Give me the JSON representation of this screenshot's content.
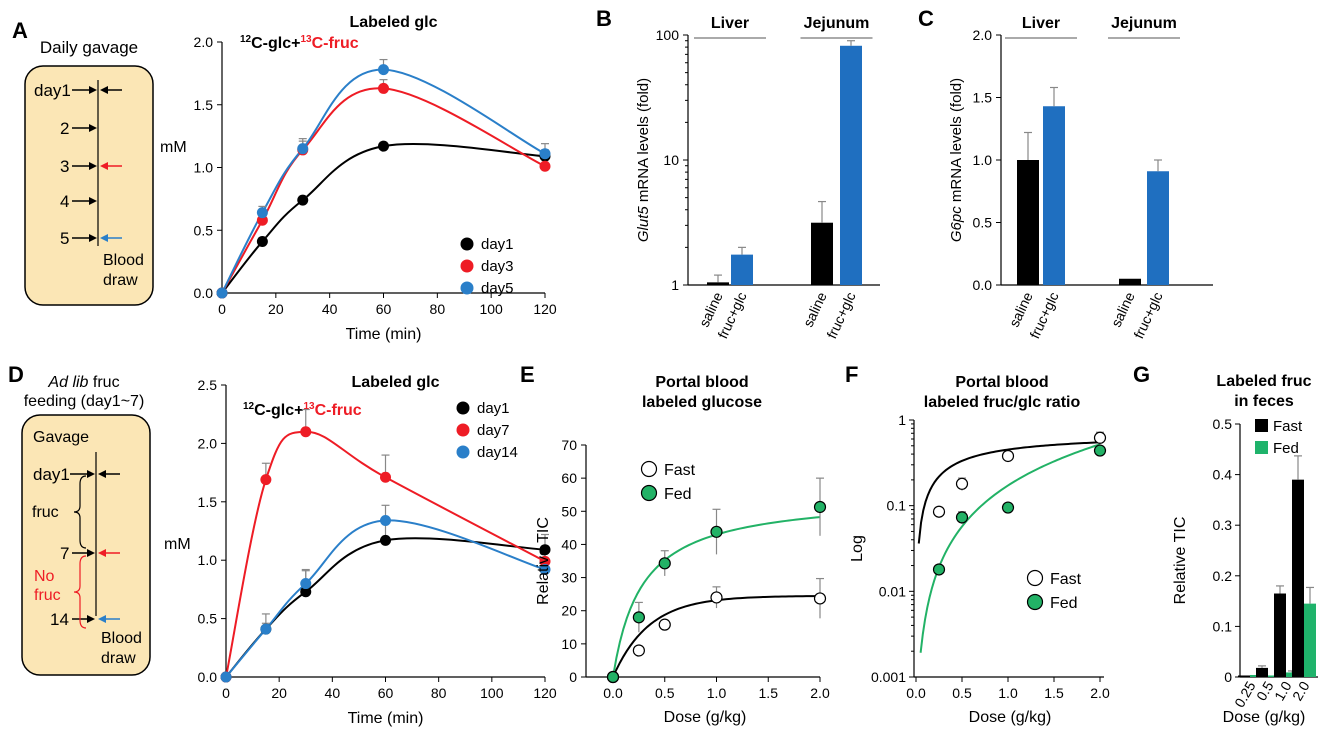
{
  "panels": {
    "A": {
      "letter": "A",
      "schematic": {
        "title": "Daily gavage",
        "days": [
          "day1",
          "2",
          "3",
          "4",
          "5"
        ],
        "blood_draw": [
          "Blood",
          "draw"
        ]
      }
    },
    "B": {
      "letter": "B"
    },
    "C": {
      "letter": "C"
    },
    "D": {
      "letter": "D",
      "schematic": {
        "title_italic": "Ad lib",
        "title_rest": " fruc",
        "title_line2": "feeding (day1~7)",
        "box_title": "Gavage",
        "days": [
          "day1",
          "7",
          "14"
        ],
        "fruc_label": "fruc",
        "no_fruc_label": [
          "No",
          "fruc"
        ],
        "blood_draw": [
          "Blood",
          "draw"
        ]
      }
    },
    "E": {
      "letter": "E"
    },
    "F": {
      "letter": "F"
    },
    "G": {
      "letter": "G"
    }
  },
  "colors": {
    "black": "#000000",
    "red": "#ee1c25",
    "blue": "#2a7fc9",
    "bar_blue": "#1f6fc0",
    "green": "#22b266",
    "bar_green": "#1fb36b",
    "schematic_fill": "#fbe6b5"
  },
  "chart_data": [
    {
      "id": "A",
      "type": "line",
      "title": "Labeled glc",
      "annotation": {
        "part1": "12C-glc+",
        "part2": "13C-fruc"
      },
      "xlabel": "Time (min)",
      "ylabel": "mM",
      "xlim": [
        0,
        120
      ],
      "ylim": [
        0,
        2.0
      ],
      "xticks": [
        0,
        20,
        40,
        60,
        80,
        100,
        120
      ],
      "yticks": [
        "0.0",
        "0.5",
        "1.0",
        "1.5",
        "2.0"
      ],
      "x": [
        0,
        15,
        30,
        60,
        120
      ],
      "series": [
        {
          "name": "day1",
          "color": "#000000",
          "values": [
            0,
            0.41,
            0.74,
            1.17,
            1.09
          ],
          "err": [
            0,
            0.03,
            0.03,
            0.03,
            0.05
          ]
        },
        {
          "name": "day3",
          "color": "#ee1c25",
          "values": [
            0,
            0.58,
            1.14,
            1.63,
            1.01
          ],
          "err": [
            0,
            0.05,
            0.07,
            0.07,
            0.08
          ]
        },
        {
          "name": "day5",
          "color": "#2a7fc9",
          "values": [
            0,
            0.64,
            1.15,
            1.78,
            1.11
          ],
          "err": [
            0,
            0.05,
            0.08,
            0.08,
            0.08
          ]
        }
      ],
      "legend": "bottom-right"
    },
    {
      "id": "B",
      "type": "bar",
      "scale": "log",
      "ylabel_italic": "Glut5",
      "ylabel_rest": " mRNA levels (fold)",
      "ylim": [
        1,
        100
      ],
      "yticks": [
        "1",
        "10",
        "100"
      ],
      "groups": [
        "Liver",
        "Jejunum"
      ],
      "categories": [
        "saline",
        "fruc+glc",
        "saline",
        "fruc+glc"
      ],
      "values": [
        1.05,
        1.75,
        3.15,
        82
      ],
      "err": [
        0.15,
        0.25,
        1.5,
        8
      ],
      "colors": [
        "#000000",
        "#1f6fc0",
        "#000000",
        "#1f6fc0"
      ]
    },
    {
      "id": "C",
      "type": "bar",
      "ylabel_italic": "G6pc",
      "ylabel_rest": " mRNA levels (fold)",
      "ylim": [
        0,
        2.0
      ],
      "yticks": [
        "0.0",
        "0.5",
        "1.0",
        "1.5",
        "2.0"
      ],
      "groups": [
        "Liver",
        "Jejunum"
      ],
      "categories": [
        "saline",
        "fruc+glc",
        "saline",
        "fruc+glc"
      ],
      "values": [
        1.0,
        1.43,
        0.05,
        0.91
      ],
      "err": [
        0.22,
        0.15,
        0,
        0.09
      ],
      "colors": [
        "#000000",
        "#1f6fc0",
        "#000000",
        "#1f6fc0"
      ]
    },
    {
      "id": "D",
      "type": "line",
      "title": "Labeled glc",
      "annotation": {
        "part1": "12C-glc+",
        "part2": "13C-fruc"
      },
      "xlabel": "Time (min)",
      "ylabel": "mM",
      "xlim": [
        0,
        120
      ],
      "ylim": [
        0,
        2.5
      ],
      "xticks": [
        0,
        20,
        40,
        60,
        80,
        100,
        120
      ],
      "yticks": [
        "0.0",
        "0.5",
        "1.0",
        "1.5",
        "2.0",
        "2.5"
      ],
      "x": [
        0,
        15,
        30,
        60,
        120
      ],
      "series": [
        {
          "name": "day1",
          "color": "#000000",
          "values": [
            0,
            0.41,
            0.73,
            1.17,
            1.09
          ],
          "err": [
            0,
            0.05,
            0.18,
            0.18,
            0.13
          ]
        },
        {
          "name": "day7",
          "color": "#ee1c25",
          "values": [
            0,
            1.69,
            2.1,
            1.71,
            0.99
          ],
          "err": [
            0,
            0.14,
            0.19,
            0.19,
            0.12
          ]
        },
        {
          "name": "day14",
          "color": "#2a7fc9",
          "values": [
            0,
            0.41,
            0.8,
            1.34,
            0.92
          ],
          "err": [
            0,
            0.13,
            0.12,
            0.13,
            0.17
          ]
        }
      ],
      "legend": "top-right"
    },
    {
      "id": "E",
      "type": "scatter",
      "title": [
        "Portal blood",
        "labeled glucose"
      ],
      "xlabel": "Dose (g/kg)",
      "ylabel": "Relative TIC",
      "xlim": [
        0,
        2.0
      ],
      "ylim": [
        0,
        70
      ],
      "xticks": [
        "0.0",
        "0.5",
        "1.0",
        "1.5",
        "2.0"
      ],
      "yticks": [
        "0",
        "10",
        "20",
        "30",
        "40",
        "50",
        "60",
        "70"
      ],
      "x": [
        0,
        0.25,
        0.5,
        1.0,
        2.0
      ],
      "series": [
        {
          "name": "Fast",
          "values": [
            0,
            8,
            15.8,
            24,
            23.7
          ],
          "err": [
            0,
            1.2,
            1.2,
            3.2,
            6
          ],
          "fill": "#ffffff"
        },
        {
          "name": "Fed",
          "values": [
            0,
            18,
            34.3,
            43.8,
            51.3
          ],
          "err": [
            0,
            4.5,
            3.8,
            6.8,
            8.7
          ],
          "fill": "#22b266"
        }
      ],
      "legend": "top-left"
    },
    {
      "id": "F",
      "type": "scatter",
      "scale": "log",
      "title": [
        "Portal blood",
        "labeled fruc/glc ratio"
      ],
      "xlabel": "Dose (g/kg)",
      "ylabel": "Log",
      "xlim": [
        0,
        2.0
      ],
      "ylim": [
        0.001,
        1
      ],
      "xticks": [
        "0.0",
        "0.5",
        "1.0",
        "1.5",
        "2.0"
      ],
      "yticks": [
        "0.001",
        "0.01",
        "0.1",
        "1"
      ],
      "x": [
        0.25,
        0.5,
        1.0,
        2.0
      ],
      "series": [
        {
          "name": "Fast",
          "values": [
            0.085,
            0.18,
            0.38,
            0.62
          ],
          "err": [
            0.01,
            0.03,
            0.03,
            0.1
          ],
          "fill": "#ffffff"
        },
        {
          "name": "Fed",
          "values": [
            0.018,
            0.073,
            0.095,
            0.44
          ],
          "err": [
            0.002,
            0.012,
            0.008,
            0.05
          ],
          "fill": "#22b266"
        }
      ],
      "legend": "bottom-right"
    },
    {
      "id": "G",
      "type": "bar",
      "title": [
        "Labeled fruc",
        "in feces"
      ],
      "xlabel": "Dose (g/kg)",
      "ylabel": "Relative TIC",
      "ylim": [
        0,
        0.5
      ],
      "yticks": [
        "0",
        "0.1",
        "0.2",
        "0.3",
        "0.4",
        "0.5"
      ],
      "categories": [
        "0.25",
        "0.5",
        "1.0",
        "2.0"
      ],
      "series": [
        {
          "name": "Fast",
          "color": "#000000",
          "values": [
            0.003,
            0.018,
            0.165,
            0.39
          ],
          "err": [
            0,
            0.004,
            0.015,
            0.047
          ]
        },
        {
          "name": "Fed",
          "color": "#1fb36b",
          "values": [
            0.004,
            0.003,
            0.009,
            0.145
          ],
          "err": [
            0,
            0,
            0.003,
            0.032
          ]
        }
      ],
      "legend": "top-right"
    }
  ]
}
